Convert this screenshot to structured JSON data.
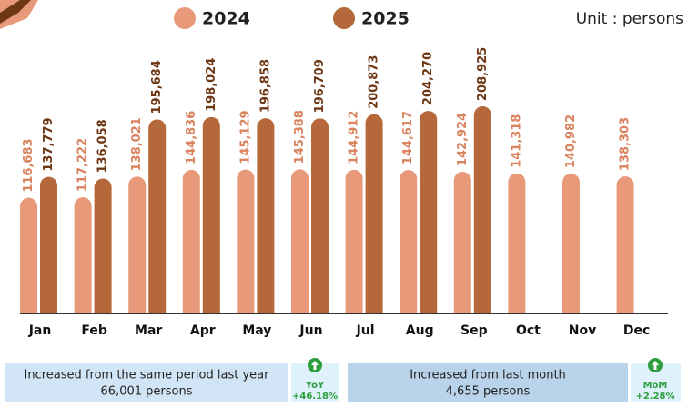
{
  "chart_data": {
    "type": "bar",
    "unit": "Unit : persons",
    "categories": [
      "Jan",
      "Feb",
      "Mar",
      "Apr",
      "May",
      "Jun",
      "Jul",
      "Aug",
      "Sep",
      "Oct",
      "Nov",
      "Dec"
    ],
    "series": [
      {
        "name": "2024",
        "color": "#e8997a",
        "label_color": "#d9835f",
        "values": [
          116683,
          117222,
          138021,
          144836,
          145129,
          145388,
          144912,
          144617,
          142924,
          141318,
          140982,
          138303
        ],
        "value_labels": [
          "116,683",
          "117,222",
          "138,021",
          "144,836",
          "145,129",
          "145,388",
          "144,912",
          "144,617",
          "142,924",
          "141,318",
          "140,982",
          "138,303"
        ]
      },
      {
        "name": "2025",
        "color": "#b5693a",
        "label_color": "#6e3714",
        "values": [
          137779,
          136058,
          195684,
          198024,
          196858,
          196709,
          200873,
          204270,
          208925,
          null,
          null,
          null
        ],
        "value_labels": [
          "137,779",
          "136,058",
          "195,684",
          "198,024",
          "196,858",
          "196,709",
          "200,873",
          "204,270",
          "208,925",
          null,
          null,
          null
        ]
      }
    ]
  },
  "footer": {
    "yoy": {
      "text": "Increased from the same period last year",
      "amount": "66,001 persons",
      "tag": "YoY",
      "pct": "+46.18%"
    },
    "mom": {
      "text": "Increased from last month",
      "amount": "4,655 persons",
      "tag": "MoM",
      "pct": "+2.28%"
    }
  }
}
